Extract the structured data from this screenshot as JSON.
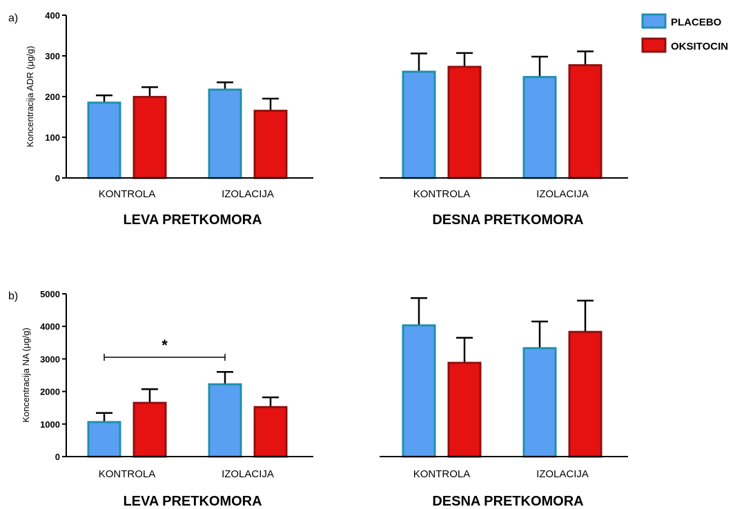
{
  "legend": {
    "placement": "top-right",
    "items": [
      {
        "label": "PLACEBO",
        "fill": "#5aa0f2",
        "stroke": "#1f8fae"
      },
      {
        "label": "OKSITOCIN",
        "fill": "#e51212",
        "stroke": "#8e1010"
      }
    ]
  },
  "panel_labels": [
    "a)",
    "b)"
  ],
  "chart_data": [
    {
      "type": "bar",
      "panel": "a)",
      "title": "LEVA PRETKOMORA",
      "ylabel": "Koncentracija ADR (μg/g)",
      "ylim": [
        0,
        400
      ],
      "yticks": [
        "0",
        "100",
        "200",
        "300",
        "400"
      ],
      "categories": [
        "KONTROLA",
        "IZOLACIJA"
      ],
      "series": [
        {
          "name": "PLACEBO",
          "values": [
            185,
            217
          ],
          "errors": [
            18,
            18
          ]
        },
        {
          "name": "OKSITOCIN",
          "values": [
            199,
            165
          ],
          "errors": [
            24,
            30
          ]
        }
      ]
    },
    {
      "type": "bar",
      "panel": "a)",
      "title": "DESNA PRETKOMORA",
      "ylim": [
        0,
        400
      ],
      "categories": [
        "KONTROLA",
        "IZOLACIJA"
      ],
      "series": [
        {
          "name": "PLACEBO",
          "values": [
            261,
            248
          ],
          "errors": [
            45,
            50
          ]
        },
        {
          "name": "OKSITOCIN",
          "values": [
            273,
            277
          ],
          "errors": [
            34,
            34
          ]
        }
      ]
    },
    {
      "type": "bar",
      "panel": "b)",
      "title": "LEVA PRETKOMORA",
      "ylabel": "Koncentracija NA (μg/g)",
      "ylim": [
        0,
        5000
      ],
      "yticks": [
        "0",
        "1000",
        "2000",
        "3000",
        "4000",
        "5000"
      ],
      "categories": [
        "KONTROLA",
        "IZOLACIJA"
      ],
      "series": [
        {
          "name": "PLACEBO",
          "values": [
            1060,
            2220
          ],
          "errors": [
            280,
            380
          ]
        },
        {
          "name": "OKSITOCIN",
          "values": [
            1650,
            1520
          ],
          "errors": [
            420,
            300
          ]
        }
      ],
      "annotation": {
        "text": "*",
        "between": [
          "KONTROLA",
          "IZOLACIJA"
        ],
        "series": "PLACEBO",
        "y": 3050
      }
    },
    {
      "type": "bar",
      "panel": "b)",
      "title": "DESNA PRETKOMORA",
      "ylim": [
        0,
        5000
      ],
      "categories": [
        "KONTROLA",
        "IZOLACIJA"
      ],
      "series": [
        {
          "name": "PLACEBO",
          "values": [
            4030,
            3330
          ],
          "errors": [
            840,
            820
          ]
        },
        {
          "name": "OKSITOCIN",
          "values": [
            2880,
            3830
          ],
          "errors": [
            770,
            960
          ]
        }
      ]
    }
  ]
}
